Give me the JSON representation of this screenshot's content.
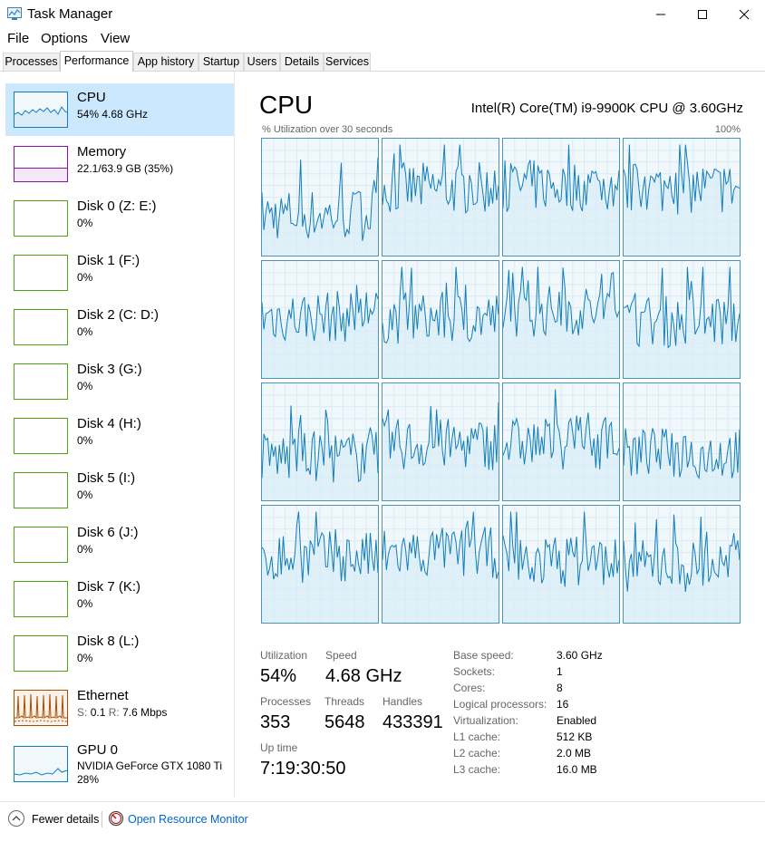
{
  "window": {
    "title": "Task Manager"
  },
  "menu": [
    "File",
    "Options",
    "View"
  ],
  "tabs": [
    "Processes",
    "Performance",
    "App history",
    "Startup",
    "Users",
    "Details",
    "Services"
  ],
  "active_tab": "Performance",
  "sidebar": {
    "items": [
      {
        "name": "CPU",
        "line1": "54%  4.68 GHz",
        "color": "#117dbb"
      },
      {
        "name": "Memory",
        "line1": "22.1/63.9 GB (35%)",
        "color": "#8b12ae"
      },
      {
        "name": "Disk 0 (Z: E:)",
        "line1": "0%",
        "color": "#4da60c"
      },
      {
        "name": "Disk 1 (F:)",
        "line1": "0%",
        "color": "#4da60c"
      },
      {
        "name": "Disk 2 (C: D:)",
        "line1": "0%",
        "color": "#4da60c"
      },
      {
        "name": "Disk 3 (G:)",
        "line1": "0%",
        "color": "#4da60c"
      },
      {
        "name": "Disk 4 (H:)",
        "line1": "0%",
        "color": "#4da60c"
      },
      {
        "name": "Disk 5 (I:)",
        "line1": "0%",
        "color": "#4da60c"
      },
      {
        "name": "Disk 6 (J:)",
        "line1": "0%",
        "color": "#4da60c"
      },
      {
        "name": "Disk 7 (K:)",
        "line1": "0%",
        "color": "#4da60c"
      },
      {
        "name": "Disk 8 (L:)",
        "line1": "0%",
        "color": "#4da60c"
      },
      {
        "name": "Ethernet",
        "line1_s_label": "S:",
        "line1_s_value": "0.1",
        "line1_r_label": "R:",
        "line1_r_value": "7.6 Mbps",
        "color": "#a74f01"
      },
      {
        "name": "GPU 0",
        "line1": "NVIDIA GeForce GTX 1080 Ti",
        "line2": "28%",
        "color": "#117dbb"
      }
    ]
  },
  "main": {
    "title": "CPU",
    "model": "Intel(R) Core(TM) i9-9900K CPU @ 3.60GHz",
    "axis_left": "% Utilization over 30 seconds",
    "axis_right": "100%",
    "cores": 16,
    "stats": {
      "utilization_label": "Utilization",
      "utilization": "54%",
      "speed_label": "Speed",
      "speed": "4.68 GHz",
      "processes_label": "Processes",
      "processes": "353",
      "threads_label": "Threads",
      "threads": "5648",
      "handles_label": "Handles",
      "handles": "433391",
      "uptime_label": "Up time",
      "uptime": "7:19:30:50"
    },
    "specs": [
      {
        "label": "Base speed:",
        "value": "3.60 GHz"
      },
      {
        "label": "Sockets:",
        "value": "1"
      },
      {
        "label": "Cores:",
        "value": "8"
      },
      {
        "label": "Logical processors:",
        "value": "16"
      },
      {
        "label": "Virtualization:",
        "value": "Enabled"
      },
      {
        "label": "L1 cache:",
        "value": "512 KB"
      },
      {
        "label": "L2 cache:",
        "value": "2.0 MB"
      },
      {
        "label": "L3 cache:",
        "value": "16.0 MB"
      }
    ]
  },
  "footer": {
    "fewer_details": "Fewer details",
    "open_resource_monitor": "Open Resource Monitor"
  },
  "colors": {
    "cpu_line": "#117dbb",
    "selected_bg": "#cce8ff",
    "link": "#0066cc"
  }
}
